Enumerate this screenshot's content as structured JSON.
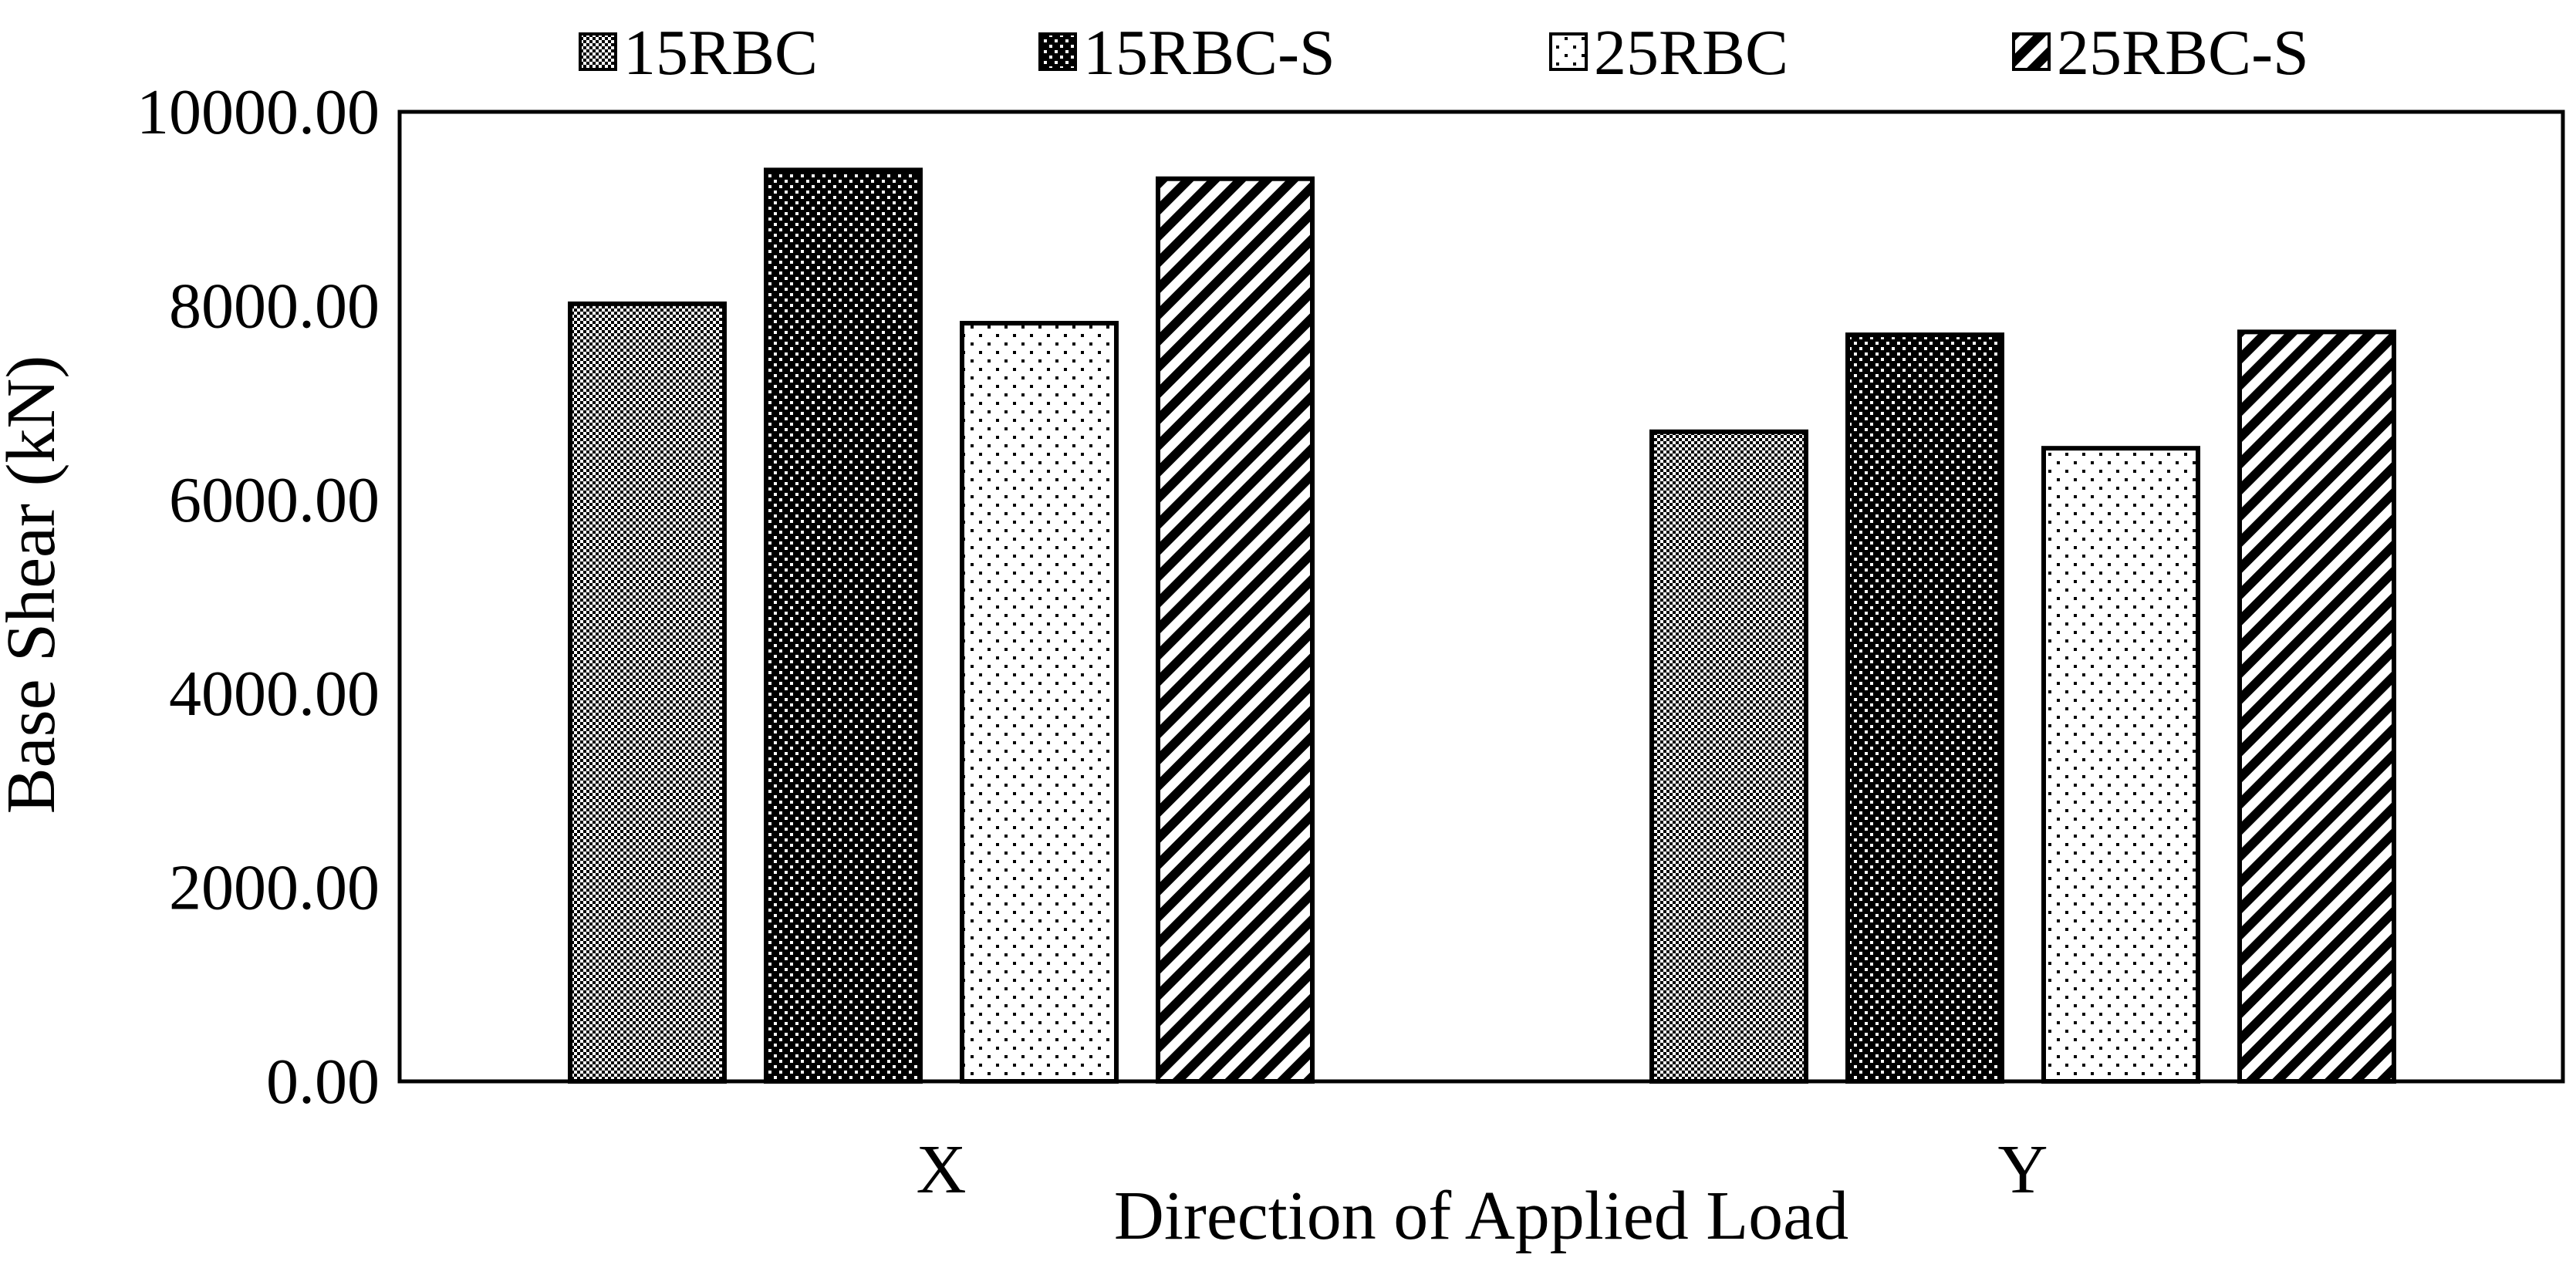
{
  "chart_data": {
    "type": "bar",
    "title": "",
    "xlabel": "Direction of Applied Load",
    "ylabel": "Base Shear (kN)",
    "categories": [
      "X",
      "Y"
    ],
    "ylim": [
      0,
      10000
    ],
    "yticks": [
      "0.00",
      "2000.00",
      "4000.00",
      "6000.00",
      "8000.00",
      "10000.00"
    ],
    "series": [
      {
        "name": "15RBC",
        "pattern": "fine-checker",
        "values": [
          8020,
          6700
        ]
      },
      {
        "name": "15RBC-S",
        "pattern": "coarse-checker",
        "values": [
          9400,
          7700
        ]
      },
      {
        "name": "25RBC",
        "pattern": "dots",
        "values": [
          7820,
          6530
        ]
      },
      {
        "name": "25RBC-S",
        "pattern": "diagonal",
        "values": [
          9310,
          7730
        ]
      }
    ],
    "grid": false,
    "legend_position": "top"
  }
}
